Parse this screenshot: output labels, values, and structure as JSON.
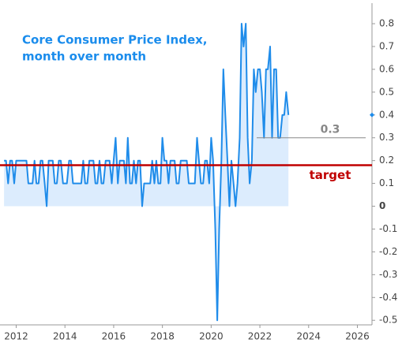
{
  "chart_data": {
    "type": "line",
    "title": "Core Consumer Price Index,",
    "subtitle": "month over month",
    "x": [
      2011.5,
      2011.58,
      2011.67,
      2011.75,
      2011.83,
      2011.92,
      2012.0,
      2012.08,
      2012.17,
      2012.25,
      2012.33,
      2012.42,
      2012.5,
      2012.58,
      2012.67,
      2012.75,
      2012.83,
      2012.92,
      2013.0,
      2013.08,
      2013.17,
      2013.25,
      2013.33,
      2013.42,
      2013.5,
      2013.58,
      2013.67,
      2013.75,
      2013.83,
      2013.92,
      2014.0,
      2014.08,
      2014.17,
      2014.25,
      2014.33,
      2014.42,
      2014.5,
      2014.58,
      2014.67,
      2014.75,
      2014.83,
      2014.92,
      2015.0,
      2015.08,
      2015.17,
      2015.25,
      2015.33,
      2015.42,
      2015.5,
      2015.58,
      2015.67,
      2015.75,
      2015.83,
      2015.92,
      2016.0,
      2016.08,
      2016.17,
      2016.25,
      2016.33,
      2016.42,
      2016.5,
      2016.58,
      2016.67,
      2016.75,
      2016.83,
      2016.92,
      2017.0,
      2017.08,
      2017.17,
      2017.25,
      2017.33,
      2017.42,
      2017.5,
      2017.58,
      2017.67,
      2017.75,
      2017.83,
      2017.92,
      2018.0,
      2018.08,
      2018.17,
      2018.25,
      2018.33,
      2018.42,
      2018.5,
      2018.58,
      2018.67,
      2018.75,
      2018.83,
      2018.92,
      2019.0,
      2019.08,
      2019.17,
      2019.25,
      2019.33,
      2019.42,
      2019.5,
      2019.58,
      2019.67,
      2019.75,
      2019.83,
      2019.92,
      2020.0,
      2020.08,
      2020.17,
      2020.25,
      2020.33,
      2020.42,
      2020.5,
      2020.58,
      2020.67,
      2020.75,
      2020.83,
      2020.92,
      2021.0,
      2021.08,
      2021.17,
      2021.25,
      2021.33,
      2021.42,
      2021.5,
      2021.58,
      2021.67,
      2021.75,
      2021.83,
      2021.92,
      2022.0,
      2022.08,
      2022.17,
      2022.25,
      2022.33,
      2022.42,
      2022.5,
      2022.58,
      2022.67,
      2022.75,
      2022.83,
      2022.92,
      2023.0,
      2023.08,
      2023.17
    ],
    "series": [
      {
        "color": "#1f8cea",
        "fill": "#dcecfd",
        "values": [
          0.2,
          0.2,
          0.1,
          0.2,
          0.2,
          0.1,
          0.2,
          0.2,
          0.2,
          0.2,
          0.2,
          0.2,
          0.1,
          0.1,
          0.1,
          0.2,
          0.1,
          0.1,
          0.2,
          0.2,
          0.1,
          0.0,
          0.2,
          0.2,
          0.2,
          0.1,
          0.1,
          0.2,
          0.2,
          0.1,
          0.1,
          0.1,
          0.2,
          0.2,
          0.1,
          0.1,
          0.1,
          0.1,
          0.1,
          0.2,
          0.1,
          0.1,
          0.2,
          0.2,
          0.2,
          0.1,
          0.1,
          0.2,
          0.1,
          0.1,
          0.2,
          0.2,
          0.2,
          0.1,
          0.2,
          0.3,
          0.1,
          0.2,
          0.2,
          0.2,
          0.1,
          0.3,
          0.1,
          0.1,
          0.2,
          0.1,
          0.2,
          0.2,
          0.0,
          0.1,
          0.1,
          0.1,
          0.1,
          0.2,
          0.1,
          0.2,
          0.1,
          0.1,
          0.3,
          0.2,
          0.2,
          0.1,
          0.2,
          0.2,
          0.2,
          0.1,
          0.1,
          0.2,
          0.2,
          0.2,
          0.2,
          0.1,
          0.1,
          0.1,
          0.1,
          0.3,
          0.2,
          0.1,
          0.1,
          0.2,
          0.2,
          0.1,
          0.3,
          0.2,
          -0.1,
          -0.5,
          -0.1,
          0.2,
          0.6,
          0.4,
          0.2,
          0.0,
          0.2,
          0.1,
          0.0,
          0.1,
          0.3,
          0.8,
          0.7,
          0.8,
          0.3,
          0.1,
          0.2,
          0.6,
          0.5,
          0.6,
          0.6,
          0.5,
          0.3,
          0.6,
          0.6,
          0.7,
          0.3,
          0.6,
          0.6,
          0.3,
          0.3,
          0.4,
          0.4,
          0.5,
          0.4
        ]
      }
    ],
    "reference_lines": [
      {
        "value": 0.3,
        "label": "0.3",
        "color": "#888888"
      },
      {
        "value": 0.18,
        "label": "target",
        "color": "#c00000"
      }
    ],
    "xlim": [
      2011.4,
      2026.6
    ],
    "xticks": [
      2012,
      2014,
      2016,
      2018,
      2020,
      2022,
      2024,
      2026
    ],
    "ylim": [
      -0.52,
      0.84
    ],
    "yticks": [
      0.8,
      0.7,
      0.6,
      0.5,
      0.4,
      0.3,
      0.2,
      0.1,
      0,
      -0.1,
      -0.2,
      -0.3,
      -0.4,
      -0.5
    ]
  }
}
